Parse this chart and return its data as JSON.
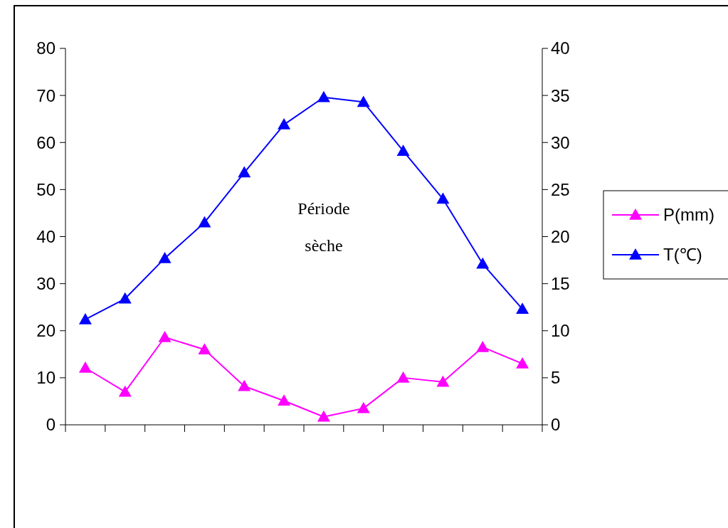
{
  "chart_data": {
    "type": "line",
    "categories": [
      null,
      null,
      null,
      null,
      null,
      null,
      null,
      null,
      null,
      null,
      null,
      null
    ],
    "series": [
      {
        "name": "P(mm)",
        "color": "#ff00ff",
        "values": [
          12.1,
          7.0,
          18.6,
          16.0,
          8.2,
          5.1,
          1.7,
          3.5,
          10.0,
          9.1,
          16.5,
          13.0
        ]
      },
      {
        "name": "T(℃)",
        "color": "#0000ff",
        "axis": "y2",
        "values": [
          11.2,
          13.4,
          17.7,
          21.5,
          26.8,
          31.9,
          34.8,
          34.3,
          29.1,
          24.0,
          17.1,
          12.3
        ]
      }
    ],
    "ylim": [
      0,
      80
    ],
    "yticks": [
      0,
      10,
      20,
      30,
      40,
      50,
      60,
      70,
      80
    ],
    "y2lim": [
      0,
      40
    ],
    "y2ticks": [
      0,
      5,
      10,
      15,
      20,
      25,
      30,
      35,
      40
    ],
    "tick_labels": "y",
    "marker": "triangle",
    "legend": "right",
    "grid": false,
    "annotations": [
      "Période\nsèche"
    ]
  }
}
